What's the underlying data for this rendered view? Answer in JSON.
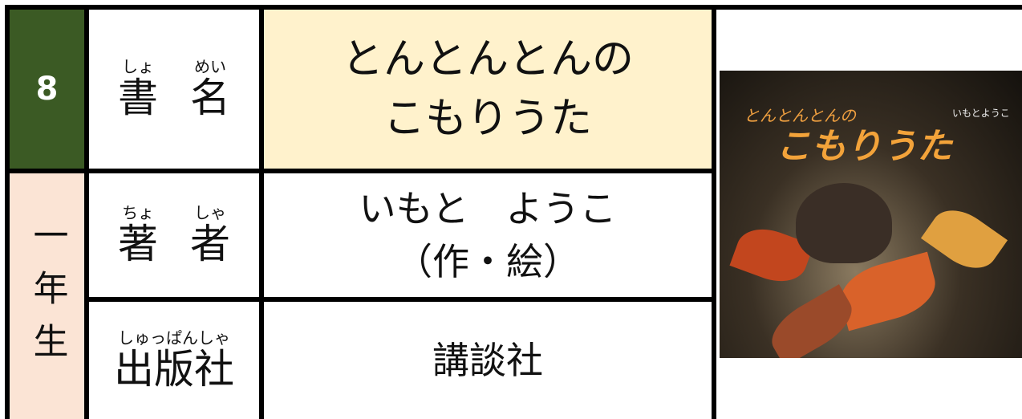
{
  "number": "8",
  "grade": "一年生",
  "rows": [
    {
      "label": [
        "書",
        "名"
      ],
      "ruby": [
        "しょ",
        "めい"
      ],
      "value": [
        "とんとんとんの",
        "こもりうた"
      ]
    },
    {
      "label": [
        "著",
        "者"
      ],
      "ruby": [
        "ちょ",
        "しゃ"
      ],
      "value": [
        "いもと　ようこ",
        "（作・絵）"
      ]
    },
    {
      "label": [
        "出版社"
      ],
      "ruby": [
        "しゅっぱんしゃ"
      ],
      "value": [
        "講談社"
      ]
    }
  ],
  "cover": {
    "title_top": "とんとんとんの",
    "title_main": "こもりうた",
    "author": "いもとようこ"
  }
}
